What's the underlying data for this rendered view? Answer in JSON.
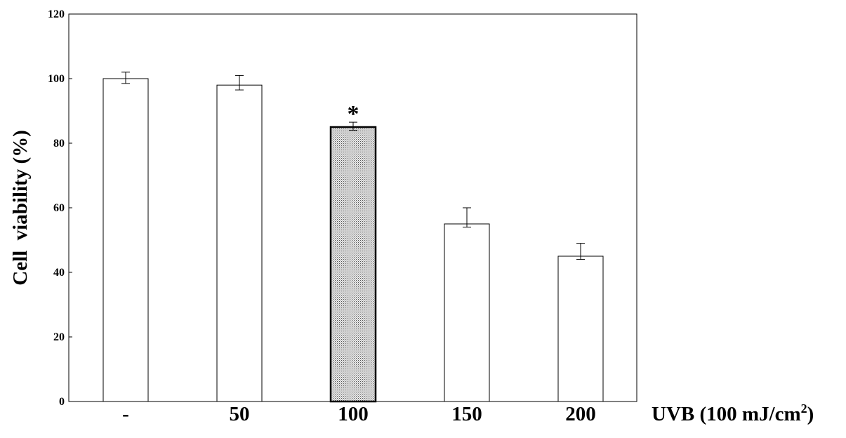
{
  "chart_data": {
    "type": "bar",
    "categories": [
      "-",
      "50",
      "100",
      "150",
      "200"
    ],
    "values": [
      100,
      98,
      85,
      55,
      45
    ],
    "error_plus": [
      2,
      3,
      1.5,
      5,
      4
    ],
    "error_minus": [
      1.5,
      1.5,
      1,
      1,
      1
    ],
    "highlight_index": 2,
    "highlight_pattern": "stippled-gray",
    "annotations": [
      {
        "category_index": 2,
        "text": "*"
      }
    ],
    "ylabel": "Cell  viability (%)",
    "xlabel": "UVB (100 mJ/cm²)",
    "xlabel_main": "UVB (100 mJ/cm",
    "xlabel_sup": "2",
    "xlabel_tail": ")",
    "ylim": [
      0,
      120
    ],
    "yticks": [
      0,
      20,
      40,
      60,
      80,
      100,
      120
    ],
    "grid": false,
    "legend": "none"
  }
}
